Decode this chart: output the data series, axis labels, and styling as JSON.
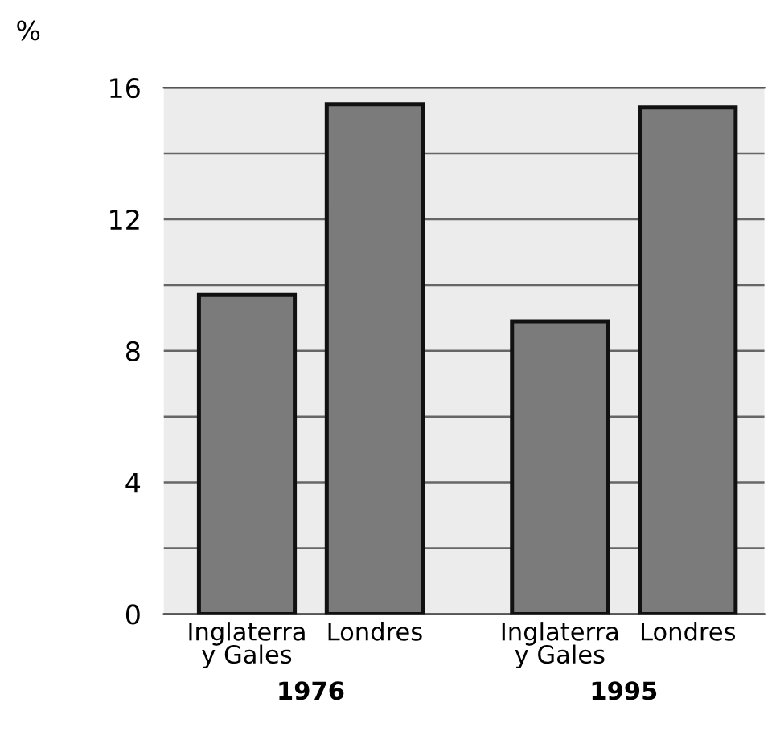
{
  "chart_data": {
    "type": "bar",
    "ylabel": "%",
    "categories": [
      "Inglaterra\ny Gales",
      "Londres",
      "Inglaterra\ny Gales",
      "Londres"
    ],
    "values": [
      9.7,
      15.5,
      8.9,
      15.4
    ],
    "color": "#7b7b7b",
    "ylim": [
      0,
      16
    ],
    "yticks": [
      0,
      {
        "value": 2,
        "label": null
      },
      4,
      {
        "value": 6,
        "label": null
      },
      8,
      {
        "value": 10,
        "label": null
      },
      12,
      {
        "value": 14,
        "label": null
      },
      16
    ],
    "grid": "y",
    "annotations": [
      "1976",
      "1995"
    ]
  }
}
